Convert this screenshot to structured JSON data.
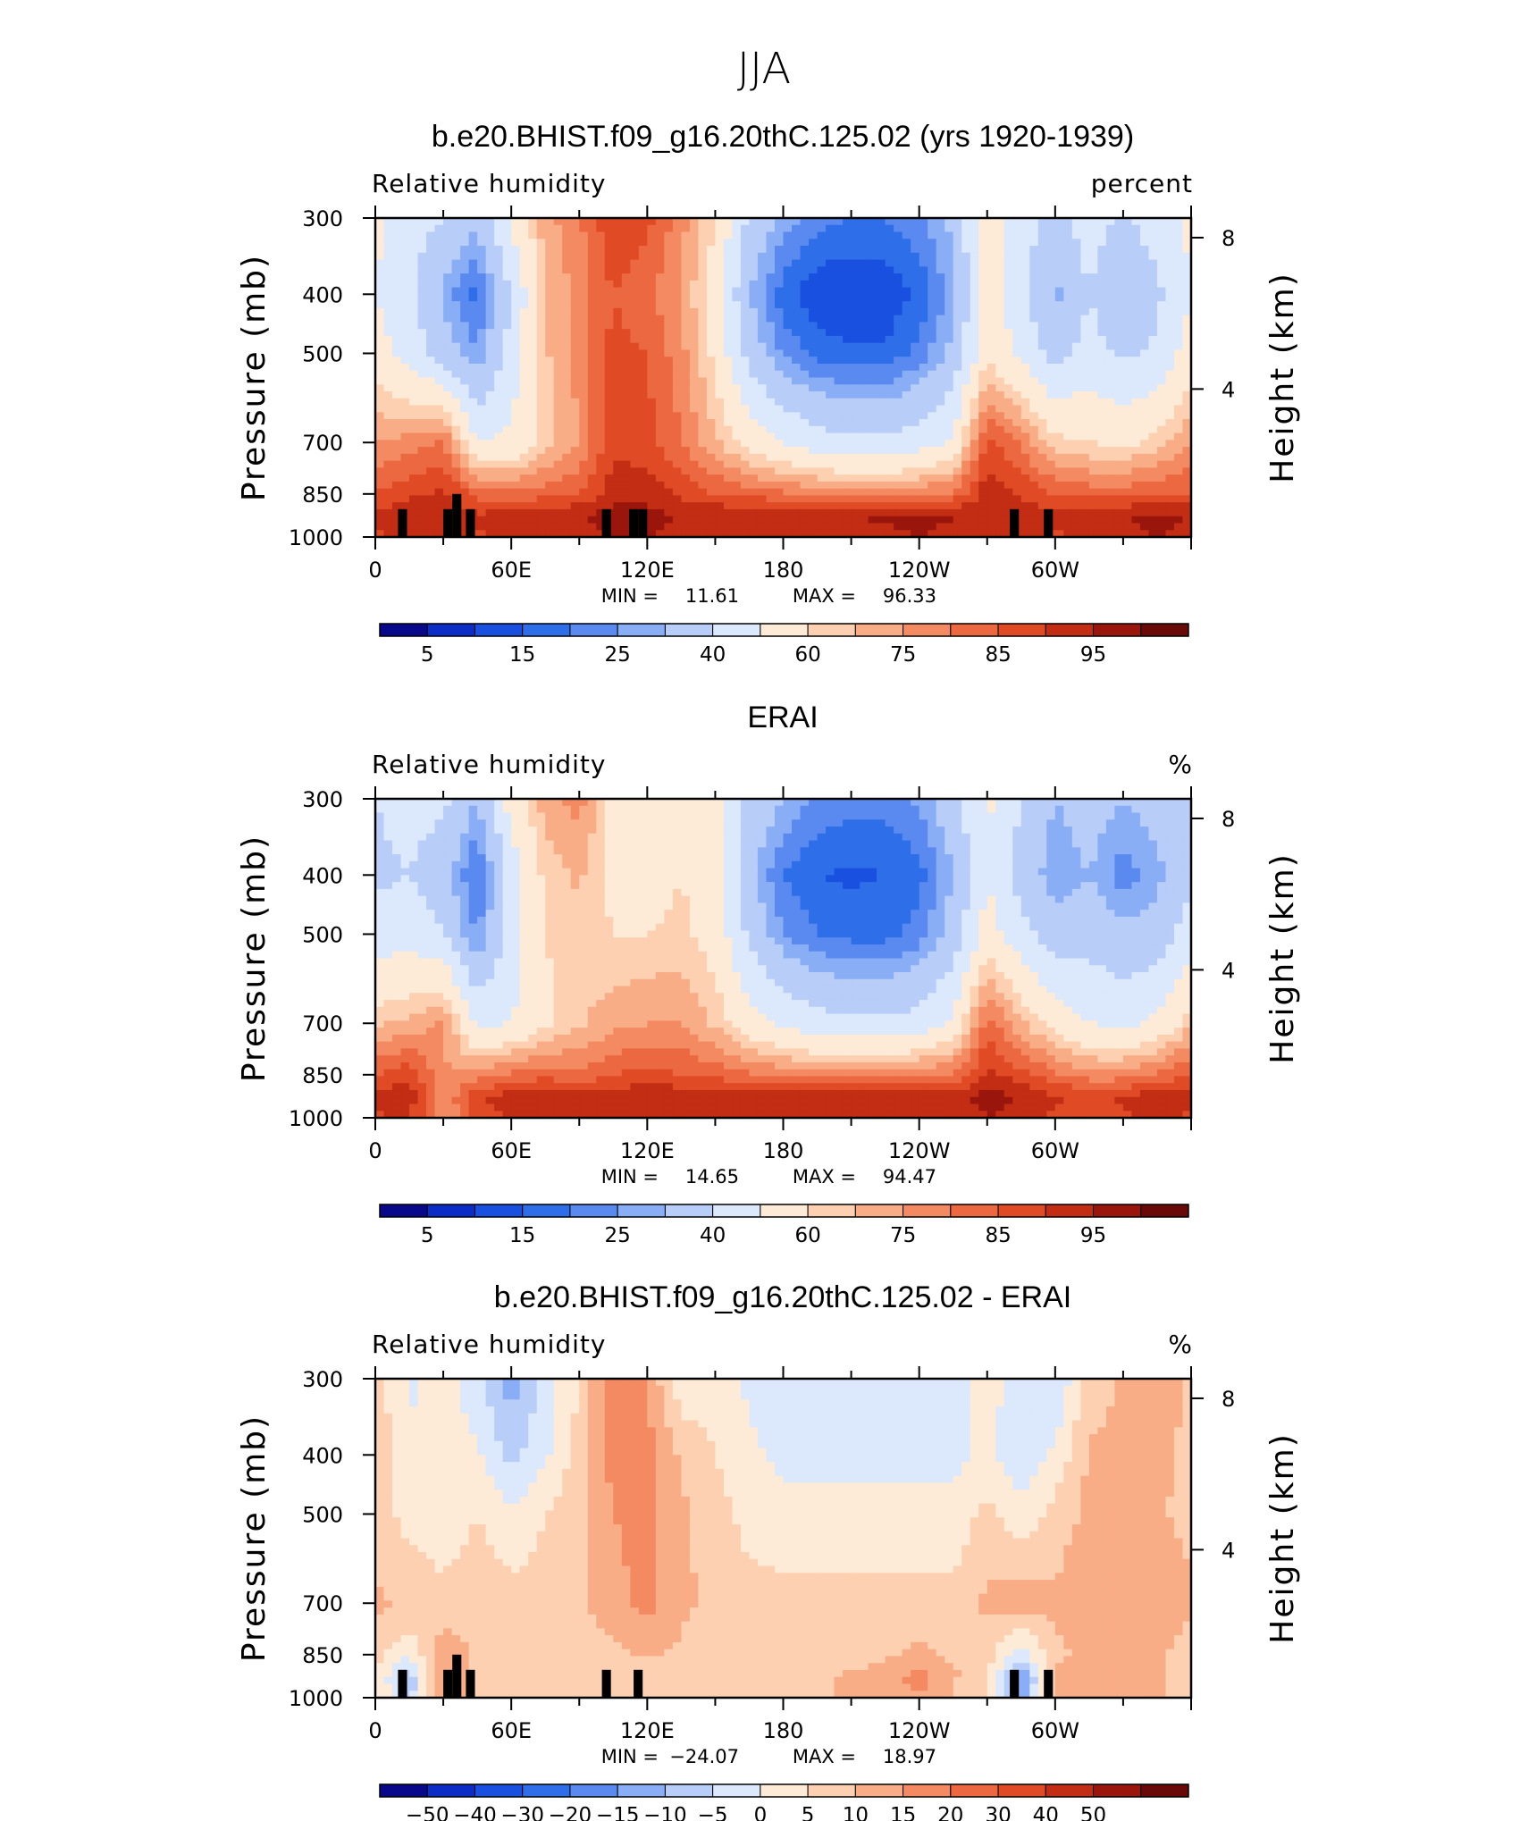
{
  "season": "JJA",
  "colorbar_colors": [
    "#08088a",
    "#0c2cc8",
    "#1a50e0",
    "#2e6ee8",
    "#5a8af0",
    "#8aaef5",
    "#b8cdf8",
    "#dce8fb",
    "#fdebd8",
    "#fcd0b0",
    "#f9ad86",
    "#f48a62",
    "#ec6840",
    "#e04a24",
    "#c22d14",
    "#9a160c",
    "#6a0a08"
  ],
  "chart_data": [
    {
      "type": "heatmap",
      "title": "b.e20.BHIST.f09_g16.20thC.125.02 (yrs 1920-1939)",
      "variable": "Relative humidity",
      "units": "percent",
      "ylabel": "Pressure (mb)",
      "ylabel_right": "Height (km)",
      "y_ticks": [
        "300",
        "400",
        "500",
        "700",
        "850",
        "1000"
      ],
      "y_right_ticks": [
        "8",
        "4"
      ],
      "x_ticks": [
        "0",
        "60E",
        "120E",
        "180",
        "120W",
        "60W"
      ],
      "stats": {
        "min_label": "MIN =",
        "min": "11.61",
        "max_label": "MAX =",
        "max": "96.33"
      },
      "colorbar_labels": [
        "5",
        "15",
        "25",
        "40",
        "60",
        "75",
        "85",
        "95"
      ],
      "levels": [
        5,
        10,
        15,
        20,
        25,
        30,
        40,
        50,
        60,
        65,
        70,
        75,
        80,
        85,
        90,
        95
      ],
      "field": {
        "lons": [
          0,
          15,
          30,
          45,
          60,
          75,
          90,
          105,
          120,
          135,
          150,
          165,
          180,
          195,
          210,
          225,
          240,
          255,
          270,
          285,
          300,
          315,
          330,
          345,
          360
        ],
        "levels_mb": [
          300,
          400,
          500,
          700,
          850,
          925,
          1000
        ],
        "values": [
          [
            52,
            45,
            40,
            32,
            52,
            68,
            74,
            85,
            82,
            72,
            60,
            38,
            28,
            22,
            20,
            20,
            24,
            32,
            58,
            45,
            36,
            45,
            38,
            45,
            52
          ],
          [
            50,
            42,
            28,
            18,
            40,
            65,
            72,
            80,
            76,
            70,
            55,
            30,
            17,
            11,
            10,
            11,
            16,
            28,
            55,
            42,
            28,
            40,
            30,
            38,
            50
          ],
          [
            55,
            46,
            35,
            25,
            44,
            64,
            72,
            82,
            80,
            72,
            58,
            36,
            24,
            18,
            16,
            16,
            22,
            32,
            58,
            48,
            36,
            44,
            38,
            42,
            55
          ],
          [
            70,
            72,
            76,
            50,
            52,
            62,
            70,
            84,
            82,
            75,
            66,
            56,
            50,
            45,
            42,
            42,
            45,
            52,
            82,
            74,
            62,
            60,
            58,
            62,
            70
          ],
          [
            80,
            84,
            86,
            78,
            76,
            78,
            80,
            88,
            88,
            84,
            80,
            78,
            76,
            74,
            72,
            72,
            74,
            76,
            88,
            84,
            80,
            78,
            78,
            80,
            80
          ],
          [
            86,
            88,
            88,
            86,
            88,
            90,
            90,
            92,
            92,
            90,
            90,
            90,
            90,
            90,
            90,
            91,
            93,
            90,
            90,
            88,
            86,
            88,
            90,
            92,
            90
          ],
          [
            84,
            86,
            86,
            84,
            86,
            88,
            88,
            90,
            90,
            88,
            88,
            88,
            88,
            88,
            88,
            88,
            90,
            88,
            88,
            86,
            84,
            86,
            88,
            90,
            88
          ]
        ]
      },
      "topography": [
        [
          10,
          900,
          1000
        ],
        [
          30,
          900,
          1000
        ],
        [
          34,
          850,
          1000
        ],
        [
          40,
          900,
          1000
        ],
        [
          100,
          900,
          1000
        ],
        [
          112,
          900,
          1000
        ],
        [
          116,
          900,
          1000
        ],
        [
          280,
          900,
          1000
        ],
        [
          295,
          900,
          1000
        ]
      ]
    },
    {
      "type": "heatmap",
      "title": "ERAI",
      "variable": "Relative humidity",
      "units": "%",
      "ylabel": "Pressure (mb)",
      "ylabel_right": "Height (km)",
      "y_ticks": [
        "300",
        "400",
        "500",
        "700",
        "850",
        "1000"
      ],
      "y_right_ticks": [
        "8",
        "4"
      ],
      "x_ticks": [
        "0",
        "60E",
        "120E",
        "180",
        "120W",
        "60W"
      ],
      "stats": {
        "min_label": "MIN =",
        "min": "14.65",
        "max_label": "MAX =",
        "max": "94.47"
      },
      "colorbar_labels": [
        "5",
        "15",
        "25",
        "40",
        "60",
        "75",
        "85",
        "95"
      ],
      "levels": [
        5,
        10,
        15,
        20,
        25,
        30,
        40,
        50,
        60,
        65,
        70,
        75,
        80,
        85,
        90,
        95
      ],
      "field": {
        "lons": [
          0,
          15,
          30,
          45,
          60,
          75,
          90,
          105,
          120,
          135,
          150,
          165,
          180,
          195,
          210,
          225,
          240,
          255,
          270,
          285,
          300,
          315,
          330,
          345,
          360
        ],
        "levels_mb": [
          300,
          400,
          500,
          700,
          850,
          925,
          1000
        ],
        "values": [
          [
            40,
            44,
            42,
            30,
            55,
            68,
            72,
            58,
            56,
            60,
            56,
            38,
            30,
            24,
            22,
            22,
            26,
            36,
            52,
            40,
            30,
            34,
            30,
            34,
            40
          ],
          [
            38,
            40,
            34,
            18,
            44,
            62,
            66,
            58,
            56,
            60,
            54,
            32,
            20,
            15,
            14,
            15,
            18,
            30,
            50,
            36,
            26,
            30,
            22,
            28,
            38
          ],
          [
            45,
            46,
            40,
            24,
            44,
            60,
            64,
            60,
            60,
            62,
            56,
            38,
            25,
            20,
            18,
            18,
            22,
            34,
            54,
            44,
            34,
            36,
            32,
            34,
            45
          ],
          [
            64,
            66,
            72,
            48,
            50,
            58,
            64,
            68,
            70,
            70,
            64,
            54,
            48,
            44,
            42,
            42,
            44,
            52,
            78,
            66,
            56,
            50,
            48,
            52,
            64
          ],
          [
            80,
            84,
            70,
            72,
            76,
            78,
            76,
            80,
            82,
            80,
            78,
            76,
            74,
            72,
            72,
            72,
            74,
            76,
            86,
            82,
            76,
            72,
            72,
            76,
            80
          ],
          [
            86,
            88,
            70,
            84,
            88,
            89,
            88,
            88,
            90,
            89,
            88,
            88,
            88,
            88,
            88,
            88,
            88,
            88,
            92,
            90,
            86,
            84,
            86,
            88,
            86
          ],
          [
            84,
            86,
            70,
            82,
            86,
            86,
            86,
            86,
            88,
            86,
            86,
            86,
            86,
            86,
            86,
            86,
            86,
            86,
            90,
            88,
            84,
            82,
            84,
            86,
            84
          ]
        ]
      },
      "topography": []
    },
    {
      "type": "heatmap",
      "title": "b.e20.BHIST.f09_g16.20thC.125.02 - ERAI",
      "variable": "Relative humidity",
      "units": "%",
      "ylabel": "Pressure (mb)",
      "ylabel_right": "Height (km)",
      "y_ticks": [
        "300",
        "400",
        "500",
        "700",
        "850",
        "1000"
      ],
      "y_right_ticks": [
        "8",
        "4"
      ],
      "x_ticks": [
        "0",
        "60E",
        "120E",
        "180",
        "120W",
        "60W"
      ],
      "stats": {
        "min_label": "MIN =",
        "min": "−24.07",
        "max_label": "MAX =",
        "max": "18.97"
      },
      "colorbar_labels": [
        "−50",
        "−40",
        "−30",
        "−20",
        "−15",
        "−10",
        "−5",
        "0",
        "5",
        "10",
        "15",
        "20",
        "30",
        "40",
        "50"
      ],
      "levels": [
        -60,
        -50,
        -40,
        -30,
        -20,
        -15,
        -10,
        -5,
        0,
        5,
        10,
        15,
        20,
        30,
        40,
        50
      ],
      "field": {
        "lons": [
          0,
          15,
          30,
          45,
          60,
          75,
          90,
          105,
          120,
          135,
          150,
          165,
          180,
          195,
          210,
          225,
          240,
          255,
          270,
          285,
          300,
          315,
          330,
          345,
          360
        ],
        "levels_mb": [
          300,
          400,
          500,
          700,
          850,
          925,
          1000
        ],
        "values": [
          [
            2,
            -6,
            -2,
            -8,
            -18,
            -8,
            0,
            14,
            10,
            -4,
            -2,
            -6,
            -8,
            -8,
            -6,
            -6,
            -6,
            -6,
            -4,
            -6,
            -10,
            2,
            6,
            8,
            4
          ],
          [
            4,
            -4,
            -4,
            -4,
            -12,
            -6,
            2,
            12,
            12,
            4,
            0,
            -4,
            -6,
            -6,
            -6,
            -6,
            -6,
            -6,
            -4,
            -8,
            -4,
            6,
            6,
            6,
            4
          ],
          [
            3,
            -2,
            -4,
            0,
            -4,
            0,
            4,
            10,
            12,
            6,
            2,
            -2,
            -4,
            -4,
            -4,
            -4,
            -4,
            -4,
            2,
            -4,
            2,
            6,
            6,
            6,
            3
          ],
          [
            6,
            4,
            2,
            4,
            2,
            2,
            4,
            8,
            12,
            6,
            4,
            2,
            2,
            2,
            2,
            2,
            2,
            2,
            6,
            8,
            6,
            10,
            10,
            10,
            6
          ],
          [
            2,
            -4,
            8,
            4,
            2,
            2,
            2,
            4,
            6,
            4,
            2,
            2,
            2,
            2,
            2,
            4,
            6,
            4,
            2,
            -8,
            4,
            6,
            6,
            6,
            2
          ],
          [
            0,
            -14,
            12,
            2,
            0,
            2,
            2,
            4,
            2,
            2,
            2,
            2,
            2,
            4,
            6,
            8,
            12,
            6,
            0,
            -20,
            6,
            6,
            6,
            6,
            2
          ],
          [
            0,
            -12,
            10,
            2,
            0,
            2,
            2,
            4,
            2,
            2,
            2,
            2,
            2,
            4,
            6,
            6,
            10,
            4,
            0,
            -18,
            6,
            6,
            6,
            6,
            2
          ]
        ]
      },
      "topography": [
        [
          10,
          900,
          1000
        ],
        [
          30,
          900,
          1000
        ],
        [
          34,
          850,
          1000
        ],
        [
          40,
          900,
          1000
        ],
        [
          100,
          900,
          1000
        ],
        [
          114,
          900,
          1000
        ],
        [
          280,
          900,
          1000
        ],
        [
          295,
          900,
          1000
        ]
      ]
    }
  ]
}
